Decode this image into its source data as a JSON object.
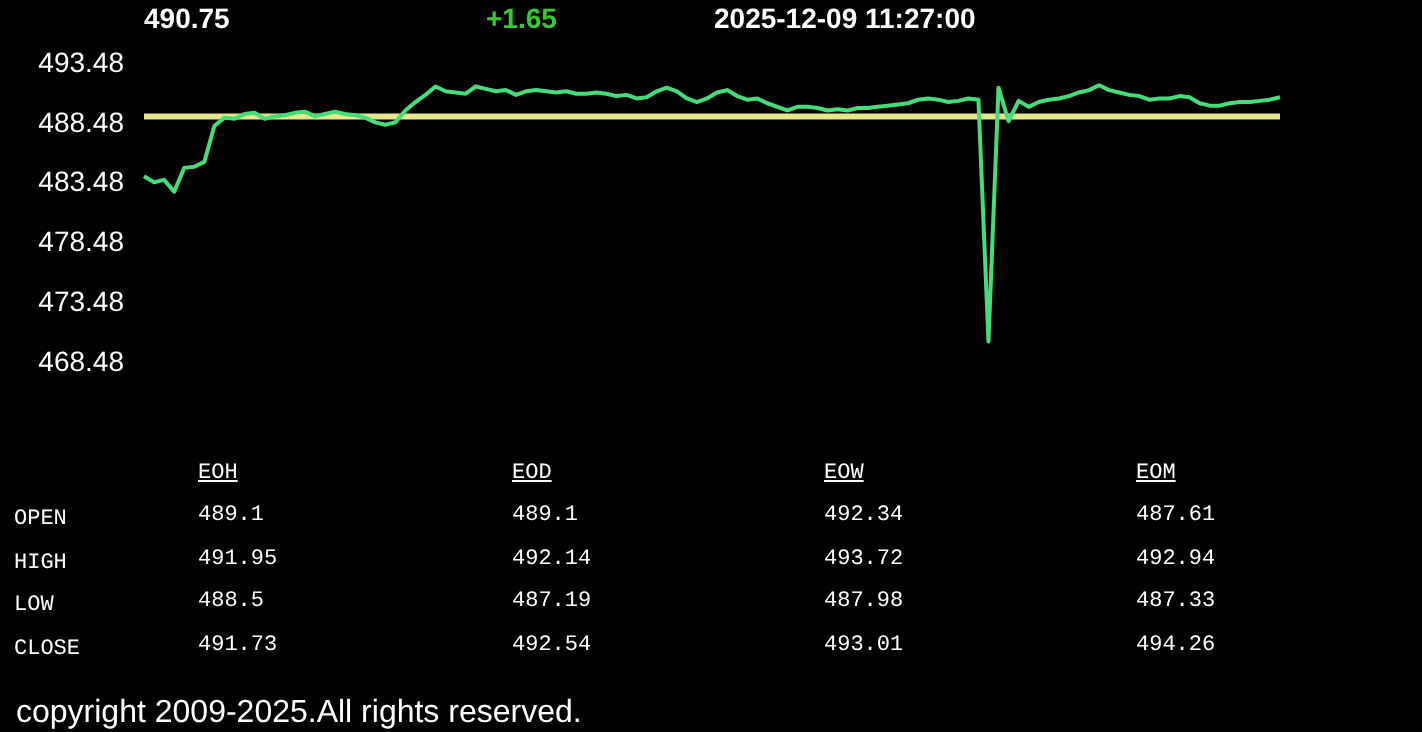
{
  "chart_data": {
    "type": "line",
    "annotations": [
      "490.75",
      "+1.65",
      "2025-12-09   11:27:00",
      "EOH",
      "EOD",
      "EOW",
      "EOM",
      "OPEN",
      "489.1",
      "489.1",
      "492.34",
      "487.61",
      "HIGH",
      "491.95",
      "492.14",
      "493.72",
      "492.94",
      "LOW",
      "488.5",
      "487.19",
      "487.98",
      "487.33",
      "CLOSE",
      "491.73",
      "492.54",
      "493.01",
      "494.26",
      "copyright 2009-2025.All rights reserved."
    ],
    "categories": [
      null,
      null,
      null,
      null,
      null,
      null,
      null,
      null,
      null,
      null,
      null,
      null,
      null,
      null,
      null,
      null,
      null,
      null,
      null,
      null,
      null,
      null,
      null,
      null,
      null,
      null,
      null,
      null,
      null,
      null,
      null,
      null,
      null,
      null,
      null,
      null,
      null,
      null,
      null,
      null,
      null,
      null,
      null,
      null,
      null,
      null,
      null,
      null,
      null,
      null,
      null,
      null,
      null,
      null,
      null,
      null,
      null,
      null,
      null,
      null,
      null,
      null,
      null,
      null,
      null,
      null,
      null,
      null,
      null,
      null,
      null,
      null,
      null,
      null,
      null,
      null,
      null,
      null,
      null,
      null,
      null,
      null,
      null,
      null,
      null,
      null,
      null,
      null,
      null,
      null,
      null,
      null,
      null,
      null,
      null,
      null,
      null,
      null,
      null,
      null,
      null,
      null,
      null,
      null,
      null,
      null,
      null,
      null,
      null,
      null,
      null,
      null,
      null,
      null
    ],
    "series": [
      {
        "color": "#44dd77",
        "values": [
          484.1,
          483.6,
          483.8,
          482.8,
          484.8,
          484.9,
          485.3,
          488.3,
          489.0,
          488.9,
          489.3,
          489.4,
          488.9,
          489.1,
          489.2,
          489.4,
          489.5,
          489.1,
          489.3,
          489.5,
          489.3,
          489.2,
          489.0,
          488.6,
          488.4,
          488.6,
          489.6,
          490.3,
          490.9,
          491.6,
          491.2,
          491.1,
          491.0,
          491.6,
          491.4,
          491.2,
          491.3,
          490.9,
          491.2,
          491.3,
          491.2,
          491.1,
          491.2,
          491.0,
          491.0,
          491.1,
          491.0,
          490.8,
          490.9,
          490.6,
          490.7,
          491.2,
          491.5,
          491.2,
          490.6,
          490.3,
          490.6,
          491.1,
          491.3,
          490.8,
          490.5,
          490.6,
          490.2,
          489.9,
          489.6,
          489.9,
          489.9,
          489.8,
          489.6,
          489.7,
          489.6,
          489.8,
          489.8,
          489.9,
          490.0,
          490.1,
          490.2,
          490.5,
          490.6,
          490.5,
          490.3,
          490.4,
          490.6,
          490.5,
          470.3,
          491.5,
          488.7,
          490.4,
          489.9,
          490.3,
          490.5,
          490.6,
          490.8,
          491.1,
          491.3,
          491.7,
          491.3,
          491.1,
          490.9,
          490.8,
          490.5,
          490.6,
          490.6,
          490.8,
          490.7,
          490.2,
          490.0,
          490.0,
          490.2,
          490.3,
          490.3,
          490.4,
          490.5,
          490.7
        ]
      }
    ],
    "ylim": [
      468.48,
      493.48
    ],
    "yticks": [
      468.48,
      473.48,
      478.48,
      483.48,
      488.48,
      493.48
    ],
    "ref_lines": [
      {
        "axis": "y",
        "value": 489.1,
        "color": "#e6e68a"
      }
    ],
    "marker": "none",
    "line_style": "solid",
    "grid": false,
    "legend": false
  }
}
